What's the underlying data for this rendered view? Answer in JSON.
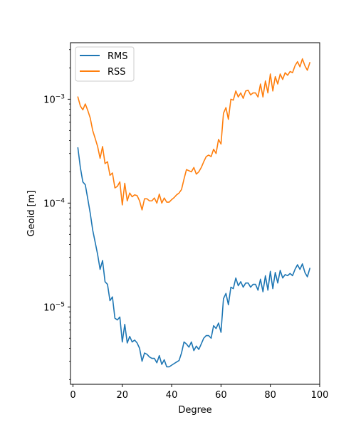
{
  "chart_data": {
    "type": "line",
    "title": "",
    "xlabel": "Degree",
    "ylabel": "Geoid [m]",
    "yscale": "log",
    "xlim": [
      -1,
      100
    ],
    "ylim": [
      1.8e-06,
      0.0035
    ],
    "xticks": [
      0,
      20,
      40,
      60,
      80,
      100
    ],
    "yticks": [
      {
        "value": 1e-05,
        "base": "10",
        "exp": "−5"
      },
      {
        "value": 0.0001,
        "base": "10",
        "exp": "−4"
      },
      {
        "value": 0.001,
        "base": "10",
        "exp": "−3"
      }
    ],
    "grid": false,
    "legend": "top-left",
    "series": [
      {
        "name": "RMS",
        "color": "#1f77b4",
        "x": [
          2,
          3,
          4,
          5,
          6,
          7,
          8,
          9,
          10,
          11,
          12,
          13,
          14,
          15,
          16,
          17,
          18,
          19,
          20,
          21,
          22,
          23,
          24,
          25,
          26,
          27,
          28,
          29,
          30,
          31,
          32,
          33,
          34,
          35,
          36,
          37,
          38,
          39,
          40,
          41,
          42,
          43,
          44,
          45,
          46,
          47,
          48,
          49,
          50,
          51,
          52,
          53,
          54,
          55,
          56,
          57,
          58,
          59,
          60,
          61,
          62,
          63,
          64,
          65,
          66,
          67,
          68,
          69,
          70,
          71,
          72,
          73,
          74,
          75,
          76,
          77,
          78,
          79,
          80,
          81,
          82,
          83,
          84,
          85,
          86,
          87,
          88,
          89,
          90,
          91,
          92,
          93,
          94,
          95,
          96
        ],
        "y": [
          0.00034,
          0.00022,
          0.00016,
          0.00015,
          0.00011,
          8e-05,
          5.5e-05,
          4.2e-05,
          3.2e-05,
          2.3e-05,
          2.8e-05,
          1.75e-05,
          1.65e-05,
          1.15e-05,
          1.25e-05,
          7.8e-06,
          7.5e-06,
          8e-06,
          4.6e-06,
          6.8e-06,
          4.5e-06,
          5.2e-06,
          4.6e-06,
          4.8e-06,
          4.5e-06,
          4e-06,
          3e-06,
          3.6e-06,
          3.5e-06,
          3.3e-06,
          3.2e-06,
          3.2e-06,
          2.9e-06,
          3.4e-06,
          2.8e-06,
          3.1e-06,
          2.65e-06,
          2.65e-06,
          2.75e-06,
          2.85e-06,
          2.95e-06,
          3.05e-06,
          3.6e-06,
          4.6e-06,
          4.4e-06,
          4.1e-06,
          4.6e-06,
          3.8e-06,
          4.2e-06,
          3.9e-06,
          4.4e-06,
          5e-06,
          5.3e-06,
          5.3e-06,
          5e-06,
          6.6e-06,
          6.2e-06,
          7e-06,
          5.7e-06,
          1.2e-05,
          1.35e-05,
          1.05e-05,
          1.55e-05,
          1.5e-05,
          1.9e-05,
          1.6e-05,
          1.75e-05,
          1.55e-05,
          1.7e-05,
          1.7e-05,
          1.55e-05,
          1.65e-05,
          1.65e-05,
          1.45e-05,
          1.85e-05,
          1.4e-05,
          2e-05,
          1.45e-05,
          2.2e-05,
          1.5e-05,
          2.15e-05,
          1.7e-05,
          2.25e-05,
          1.9e-05,
          2.05e-05,
          2e-05,
          2.1e-05,
          2e-05,
          2.3e-05,
          2.55e-05,
          2.3e-05,
          2.6e-05,
          2.15e-05,
          1.95e-05,
          2.35e-05
        ]
      },
      {
        "name": "RSS",
        "color": "#ff7f0e",
        "x": [
          2,
          3,
          4,
          5,
          6,
          7,
          8,
          9,
          10,
          11,
          12,
          13,
          14,
          15,
          16,
          17,
          18,
          19,
          20,
          21,
          22,
          23,
          24,
          25,
          26,
          27,
          28,
          29,
          30,
          31,
          32,
          33,
          34,
          35,
          36,
          37,
          38,
          39,
          40,
          41,
          42,
          43,
          44,
          45,
          46,
          47,
          48,
          49,
          50,
          51,
          52,
          53,
          54,
          55,
          56,
          57,
          58,
          59,
          60,
          61,
          62,
          63,
          64,
          65,
          66,
          67,
          68,
          69,
          70,
          71,
          72,
          73,
          74,
          75,
          76,
          77,
          78,
          79,
          80,
          81,
          82,
          83,
          84,
          85,
          86,
          87,
          88,
          89,
          90,
          91,
          92,
          93,
          94,
          95,
          96
        ],
        "y": [
          0.00105,
          0.00086,
          0.00079,
          0.0009,
          0.00078,
          0.00066,
          0.0005,
          0.00042,
          0.00035,
          0.00027,
          0.00035,
          0.00024,
          0.00025,
          0.000185,
          0.000195,
          0.00014,
          0.000145,
          0.00016,
          9.6e-05,
          0.000155,
          0.000105,
          0.000125,
          0.000115,
          0.00012,
          0.000118,
          0.000105,
          8.6e-05,
          0.00011,
          0.00011,
          0.000105,
          0.000105,
          0.000112,
          0.0001,
          0.000122,
          0.0001,
          0.000112,
          0.000102,
          0.000102,
          0.000108,
          0.000113,
          0.00012,
          0.000125,
          0.000135,
          0.00017,
          0.00021,
          0.000205,
          0.0002,
          0.00022,
          0.00019,
          0.0002,
          0.00022,
          0.00025,
          0.00028,
          0.00029,
          0.00028,
          0.00033,
          0.0003,
          0.00041,
          0.00037,
          0.00073,
          0.00083,
          0.00064,
          0.001,
          0.00098,
          0.0012,
          0.00105,
          0.00115,
          0.00102,
          0.0012,
          0.00122,
          0.0011,
          0.00115,
          0.00115,
          0.00105,
          0.0014,
          0.00105,
          0.0015,
          0.00115,
          0.00175,
          0.0012,
          0.00165,
          0.0014,
          0.00175,
          0.00155,
          0.0018,
          0.0017,
          0.00185,
          0.0018,
          0.0021,
          0.0023,
          0.00205,
          0.00245,
          0.0021,
          0.0019,
          0.00225
        ]
      }
    ]
  }
}
